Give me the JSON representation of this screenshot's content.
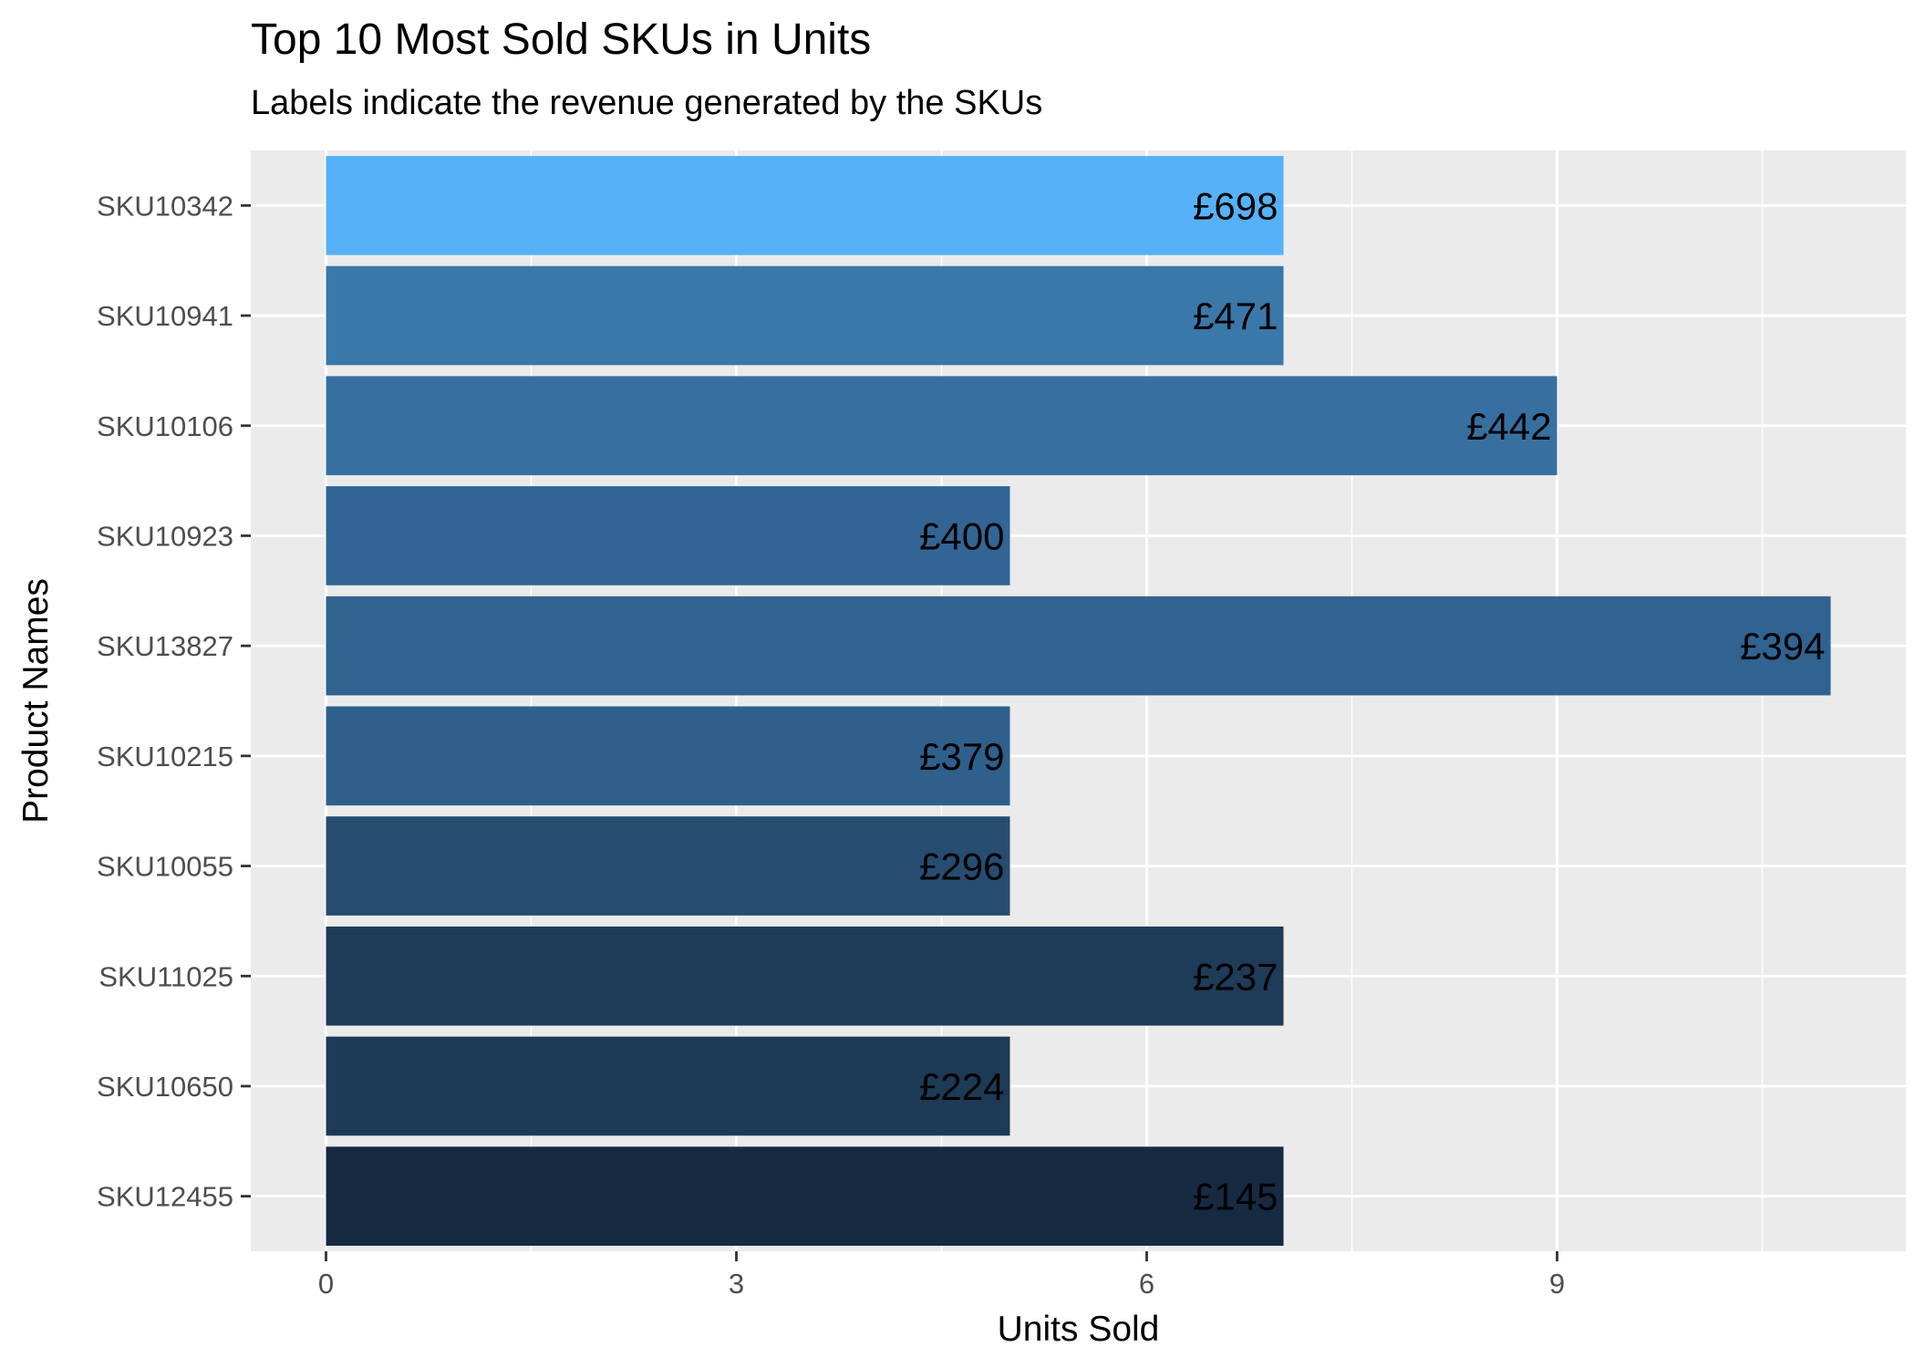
{
  "chart_data": {
    "type": "bar",
    "orientation": "horizontal",
    "title": "Top 10 Most Sold SKUs in Units",
    "subtitle": "Labels indicate the revenue generated by the SKUs",
    "xlabel": "Units Sold",
    "ylabel": "Product Names",
    "categories": [
      "SKU10342",
      "SKU10941",
      "SKU10106",
      "SKU10923",
      "SKU13827",
      "SKU10215",
      "SKU10055",
      "SKU11025",
      "SKU10650",
      "SKU12455"
    ],
    "values": [
      7,
      7,
      9,
      5,
      11,
      5,
      5,
      7,
      5,
      7
    ],
    "revenue_labels": [
      "£698",
      "£471",
      "£442",
      "£400",
      "£394",
      "£379",
      "£296",
      "£237",
      "£224",
      "£145"
    ],
    "bar_colors": [
      "#56B1F7",
      "#3A78AA",
      "#3770A0",
      "#326595",
      "#316390",
      "#2F608C",
      "#264D70",
      "#1E3B58",
      "#1D3A56",
      "#162A42"
    ],
    "xlim": [
      -0.55,
      11.55
    ],
    "xticks": [
      0,
      3,
      6,
      9
    ],
    "grid": true,
    "legend": "none",
    "panel_background": "#EBEBEB",
    "grid_color": "#FFFFFF"
  }
}
